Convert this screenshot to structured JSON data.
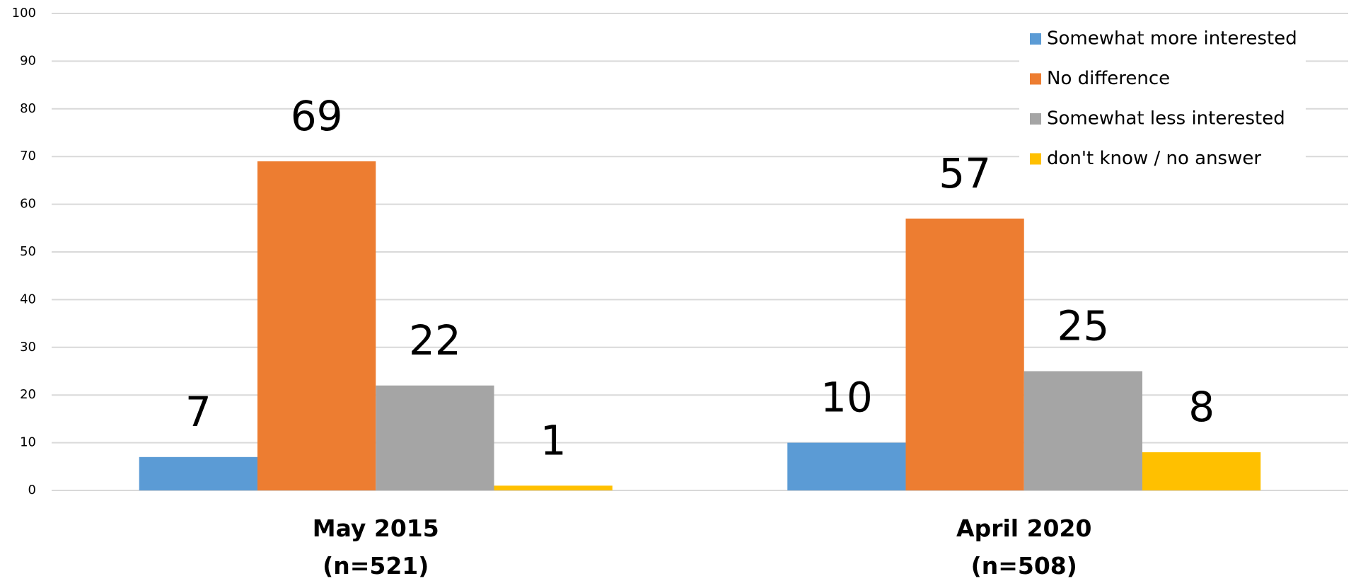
{
  "chart_data": {
    "type": "bar",
    "categories": [
      "May 2015\n(n=521)",
      "April 2020\n(n=508)"
    ],
    "series": [
      {
        "name": "Somewhat more interested",
        "color": "#5b9bd5",
        "values": [
          7,
          10
        ]
      },
      {
        "name": "No difference",
        "color": "#ed7d31",
        "values": [
          69,
          57
        ]
      },
      {
        "name": "Somewhat less interested",
        "color": "#a5a5a5",
        "values": [
          22,
          25
        ]
      },
      {
        "name": "don't know / no answer",
        "color": "#ffc000",
        "values": [
          1,
          8
        ]
      }
    ],
    "ylim": [
      0,
      100
    ],
    "yticks": [
      0,
      10,
      20,
      30,
      40,
      50,
      60,
      70,
      80,
      90,
      100
    ],
    "grid": true,
    "legend": "upper right"
  }
}
